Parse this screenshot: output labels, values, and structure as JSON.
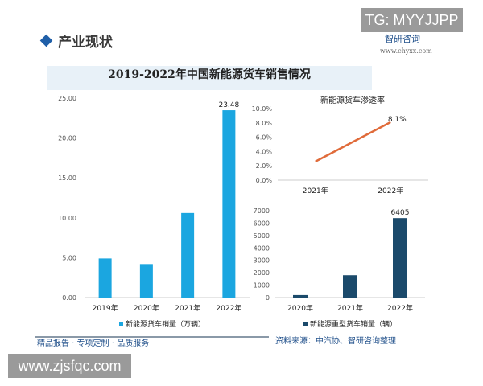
{
  "watermark_top": "TG: MYYJJPP",
  "watermark_bottom": "www.zjsfqc.com",
  "header": {
    "title": "产业现状",
    "brand": "智研咨询",
    "brand_url": "www.chyxx.com"
  },
  "footer": {
    "slogan": "精品报告 · 专项定制 · 品质服务",
    "source": "资料来源：中汽协、智研咨询整理"
  },
  "colors": {
    "light_bar": "#1ba6e0",
    "dark_bar": "#1b4a6b",
    "line": "#e06b3a",
    "title_bg": "#e8f1f8"
  },
  "chart_data": [
    {
      "type": "bar",
      "title": "2019-2022年中国新能源货车销售情况",
      "categories": [
        "2019年",
        "2020年",
        "2021年",
        "2022年"
      ],
      "series": [
        {
          "name": "新能源货车销量（万辆）",
          "values": [
            4.9,
            4.2,
            10.6,
            23.48
          ]
        }
      ],
      "data_labels": {
        "3": "23.48"
      },
      "ylim": [
        0,
        25
      ],
      "yticks": [
        "0.00",
        "5.00",
        "10.00",
        "15.00",
        "20.00",
        "25.00"
      ],
      "legend": "bottom"
    },
    {
      "type": "line",
      "title": "新能源货车渗透率",
      "categories": [
        "2021年",
        "2022年"
      ],
      "values": [
        2.6,
        8.1
      ],
      "data_labels": {
        "1": "8.1%"
      },
      "ylim": [
        0,
        10
      ],
      "yticks": [
        "0.0%",
        "2.0%",
        "4.0%",
        "6.0%",
        "8.0%",
        "10.0%"
      ]
    },
    {
      "type": "bar",
      "categories": [
        "2020年",
        "2021年",
        "2022年"
      ],
      "series": [
        {
          "name": "新能源重型货车销量（辆）",
          "values": [
            200,
            1800,
            6405
          ]
        }
      ],
      "data_labels": {
        "2": "6405"
      },
      "ylim": [
        0,
        7000
      ],
      "yticks": [
        "0",
        "1000",
        "2000",
        "3000",
        "4000",
        "5000",
        "6000",
        "7000"
      ],
      "legend": "bottom"
    }
  ]
}
